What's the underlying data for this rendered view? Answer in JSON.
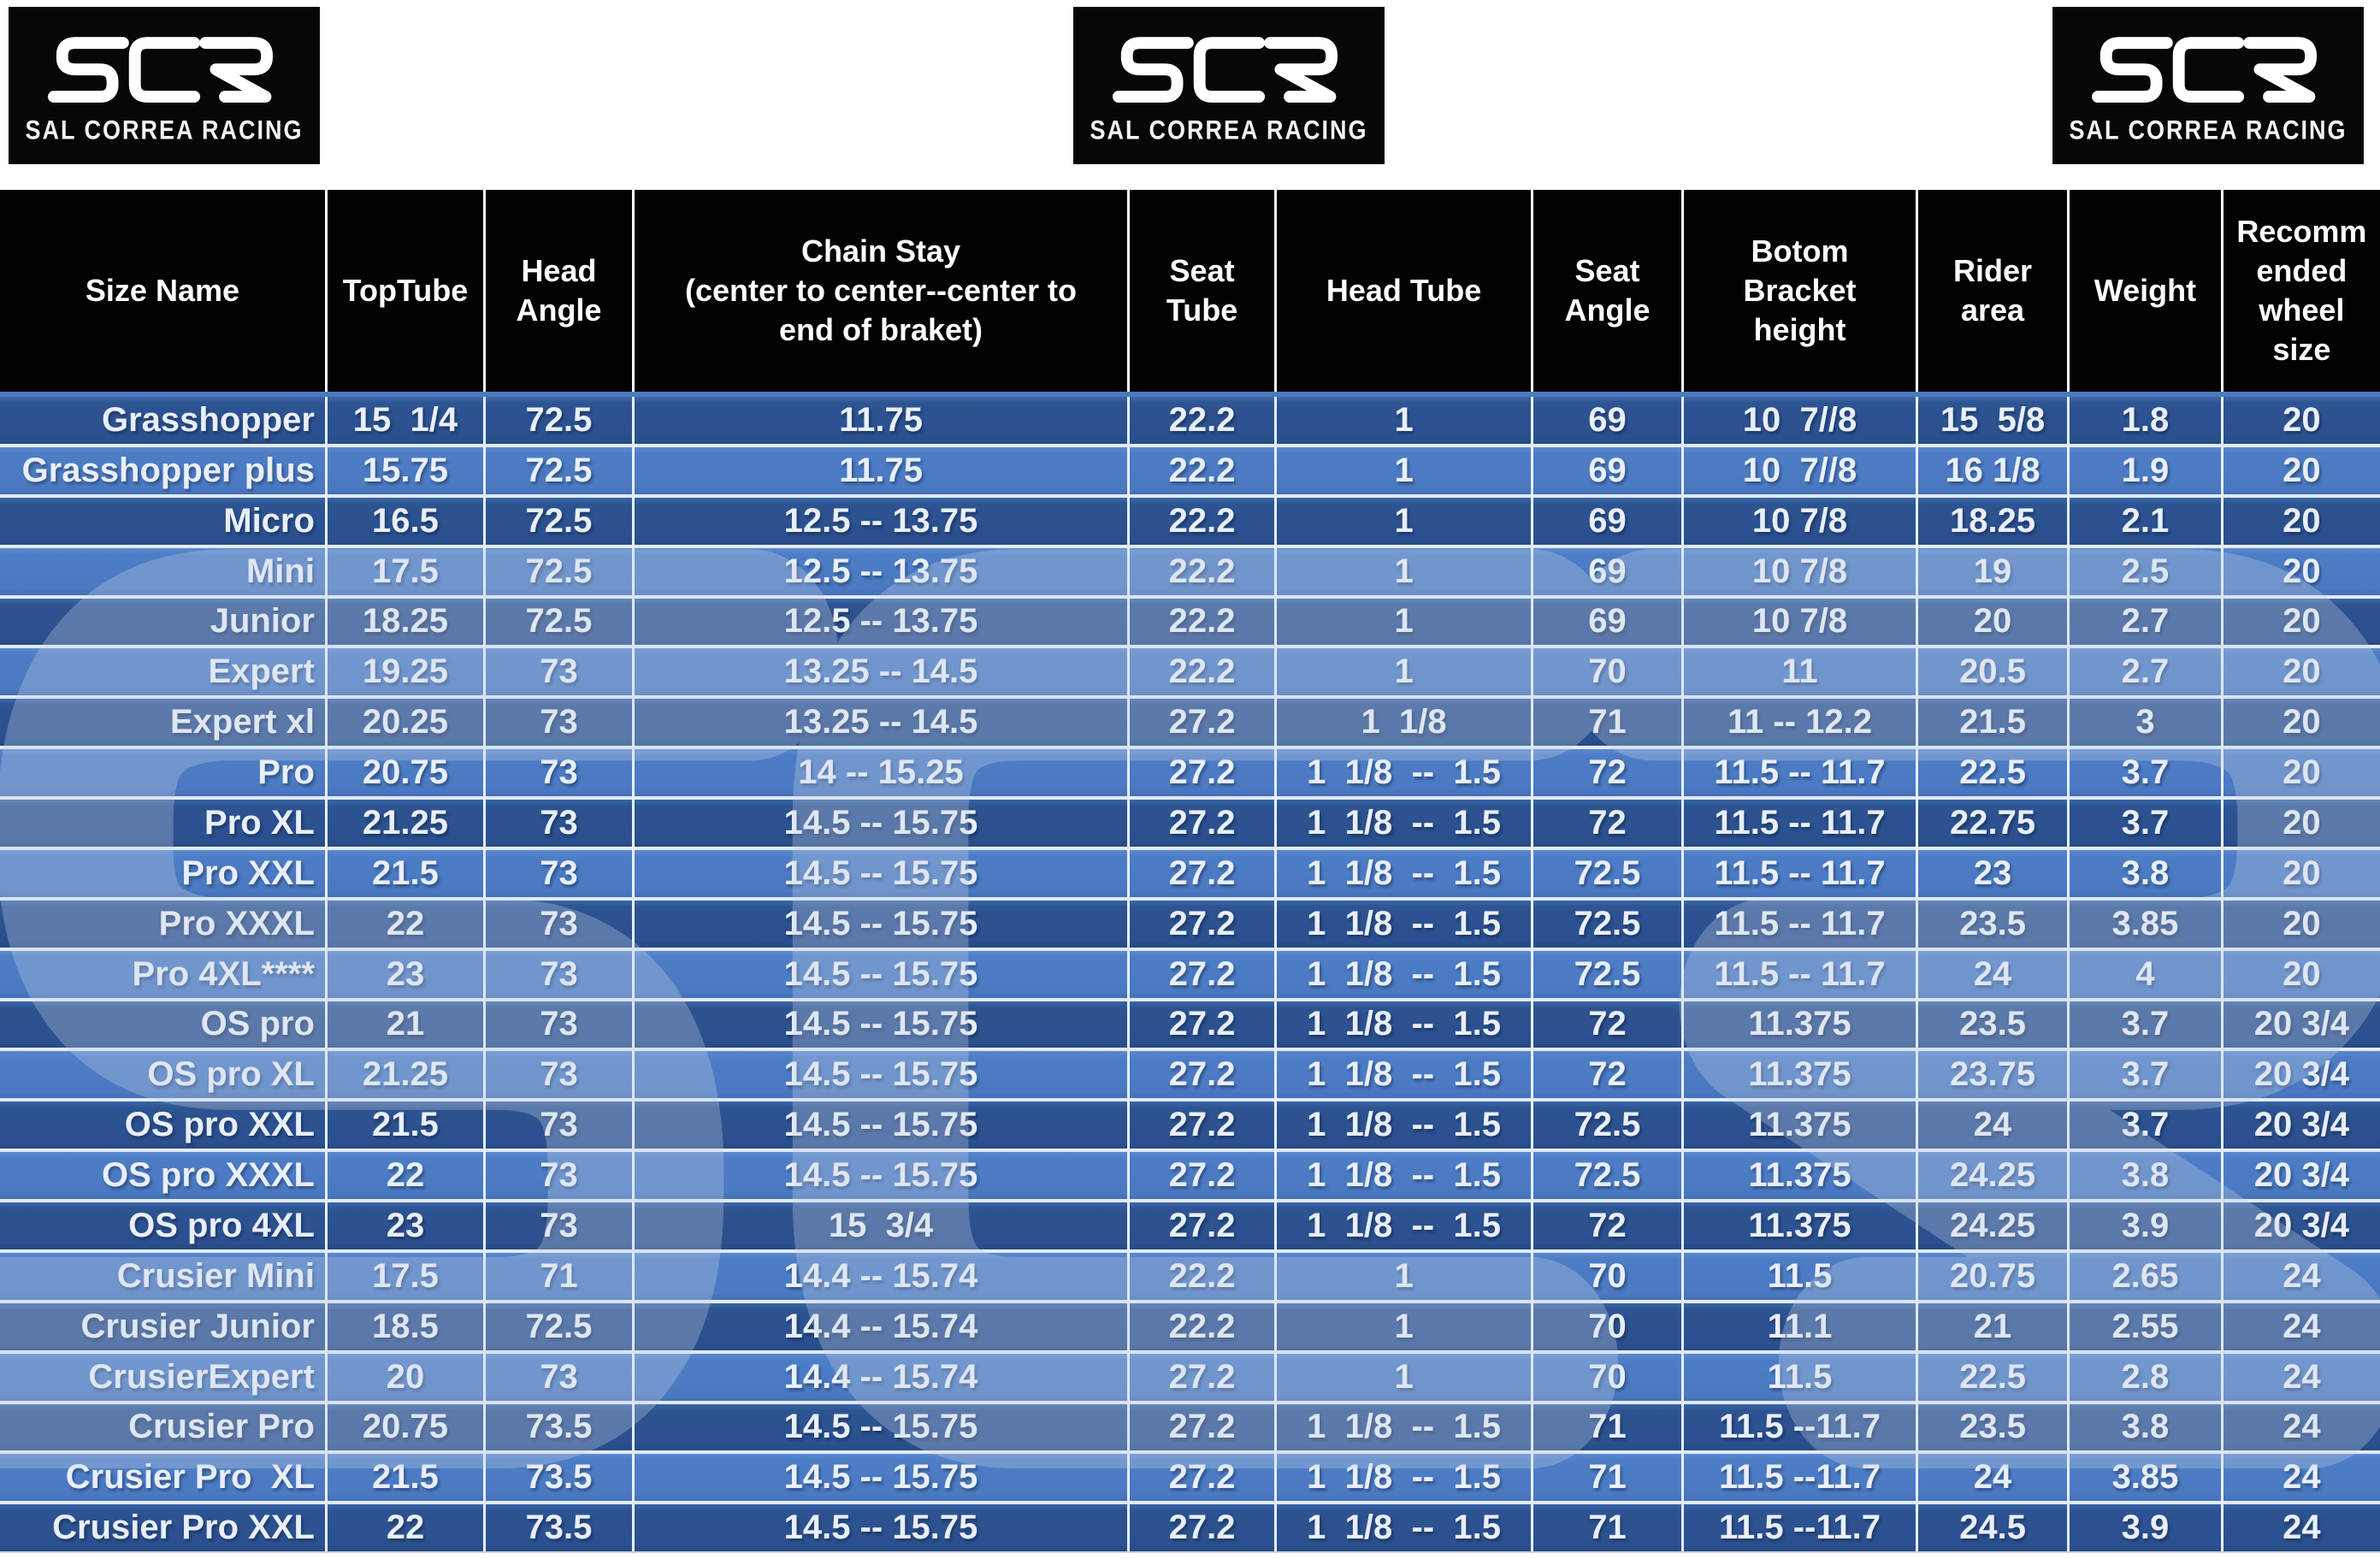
{
  "brand": {
    "monogram": "SCR",
    "tagline": "SAL CORREA RACING"
  },
  "colors": {
    "header_bg": "#020202",
    "row_dark": "#2d5391",
    "row_light": "#4d7dc6",
    "grid_line": "#e9f1fa",
    "text": "#e9eff8",
    "watermark": "#c7d4e6",
    "page_bg": "#ffffff"
  },
  "chart_data": {
    "type": "table",
    "columns": [
      "Size Name",
      "TopTube",
      "Head\nAngle",
      "Chain Stay\n(center to center--center to\nend of braket)",
      "Seat\nTube",
      "Head Tube",
      "Seat\nAngle",
      "Botom\nBracket\nheight",
      "Rider\narea",
      "Weight",
      "Recomm\nended\nwheel\nsize"
    ],
    "rows": [
      [
        "Grasshopper",
        "15  1/4",
        "72.5",
        "11.75",
        "22.2",
        "1",
        "69",
        "10  7//8",
        "15  5/8",
        "1.8",
        "20"
      ],
      [
        "Grasshopper plus",
        "15.75",
        "72.5",
        "11.75",
        "22.2",
        "1",
        "69",
        "10  7//8",
        "16 1/8",
        "1.9",
        "20"
      ],
      [
        "Micro",
        "16.5",
        "72.5",
        "12.5 -- 13.75",
        "22.2",
        "1",
        "69",
        "10 7/8",
        "18.25",
        "2.1",
        "20"
      ],
      [
        "Mini",
        "17.5",
        "72.5",
        "12.5 -- 13.75",
        "22.2",
        "1",
        "69",
        "10 7/8",
        "19",
        "2.5",
        "20"
      ],
      [
        "Junior",
        "18.25",
        "72.5",
        "12.5 -- 13.75",
        "22.2",
        "1",
        "69",
        "10 7/8",
        "20",
        "2.7",
        "20"
      ],
      [
        "Expert",
        "19.25",
        "73",
        "13.25 -- 14.5",
        "22.2",
        "1",
        "70",
        "11",
        "20.5",
        "2.7",
        "20"
      ],
      [
        "Expert xl",
        "20.25",
        "73",
        "13.25 -- 14.5",
        "27.2",
        "1  1/8",
        "71",
        "11 -- 12.2",
        "21.5",
        "3",
        "20"
      ],
      [
        "Pro",
        "20.75",
        "73",
        "14 -- 15.25",
        "27.2",
        "1  1/8  --  1.5",
        "72",
        "11.5 -- 11.7",
        "22.5",
        "3.7",
        "20"
      ],
      [
        "Pro XL",
        "21.25",
        "73",
        "14.5 -- 15.75",
        "27.2",
        "1  1/8  --  1.5",
        "72",
        "11.5 -- 11.7",
        "22.75",
        "3.7",
        "20"
      ],
      [
        "Pro XXL",
        "21.5",
        "73",
        "14.5 -- 15.75",
        "27.2",
        "1  1/8  --  1.5",
        "72.5",
        "11.5 -- 11.7",
        "23",
        "3.8",
        "20"
      ],
      [
        "Pro XXXL",
        "22",
        "73",
        "14.5 -- 15.75",
        "27.2",
        "1  1/8  --  1.5",
        "72.5",
        "11.5 -- 11.7",
        "23.5",
        "3.85",
        "20"
      ],
      [
        "Pro 4XL****",
        "23",
        "73",
        "14.5 -- 15.75",
        "27.2",
        "1  1/8  --  1.5",
        "72.5",
        "11.5 -- 11.7",
        "24",
        "4",
        "20"
      ],
      [
        "OS pro",
        "21",
        "73",
        "14.5 -- 15.75",
        "27.2",
        "1  1/8  --  1.5",
        "72",
        "11.375",
        "23.5",
        "3.7",
        "20 3/4"
      ],
      [
        "OS pro XL",
        "21.25",
        "73",
        "14.5 -- 15.75",
        "27.2",
        "1  1/8  --  1.5",
        "72",
        "11.375",
        "23.75",
        "3.7",
        "20 3/4"
      ],
      [
        "OS pro XXL",
        "21.5",
        "73",
        "14.5 -- 15.75",
        "27.2",
        "1  1/8  --  1.5",
        "72.5",
        "11.375",
        "24",
        "3.7",
        "20 3/4"
      ],
      [
        "OS pro XXXL",
        "22",
        "73",
        "14.5 -- 15.75",
        "27.2",
        "1  1/8  --  1.5",
        "72.5",
        "11.375",
        "24.25",
        "3.8",
        "20 3/4"
      ],
      [
        "OS pro 4XL",
        "23",
        "73",
        "15  3/4",
        "27.2",
        "1  1/8  --  1.5",
        "72",
        "11.375",
        "24.25",
        "3.9",
        "20 3/4"
      ],
      [
        "Crusier Mini",
        "17.5",
        "71",
        "14.4 -- 15.74",
        "22.2",
        "1",
        "70",
        "11.5",
        "20.75",
        "2.65",
        "24"
      ],
      [
        "Crusier Junior",
        "18.5",
        "72.5",
        "14.4 -- 15.74",
        "22.2",
        "1",
        "70",
        "11.1",
        "21",
        "2.55",
        "24"
      ],
      [
        "CrusierExpert",
        "20",
        "73",
        "14.4 -- 15.74",
        "27.2",
        "1",
        "70",
        "11.5",
        "22.5",
        "2.8",
        "24"
      ],
      [
        "Crusier Pro",
        "20.75",
        "73.5",
        "14.5 -- 15.75",
        "27.2",
        "1  1/8  --  1.5",
        "71",
        "11.5 --11.7",
        "23.5",
        "3.8",
        "24"
      ],
      [
        "Crusier Pro  XL",
        "21.5",
        "73.5",
        "14.5 -- 15.75",
        "27.2",
        "1  1/8  --  1.5",
        "71",
        "11.5 --11.7",
        "24",
        "3.85",
        "24"
      ],
      [
        "Crusier Pro XXL",
        "22",
        "73.5",
        "14.5 -- 15.75",
        "27.2",
        "1  1/8  --  1.5",
        "71",
        "11.5 --11.7",
        "24.5",
        "3.9",
        "24"
      ]
    ]
  }
}
